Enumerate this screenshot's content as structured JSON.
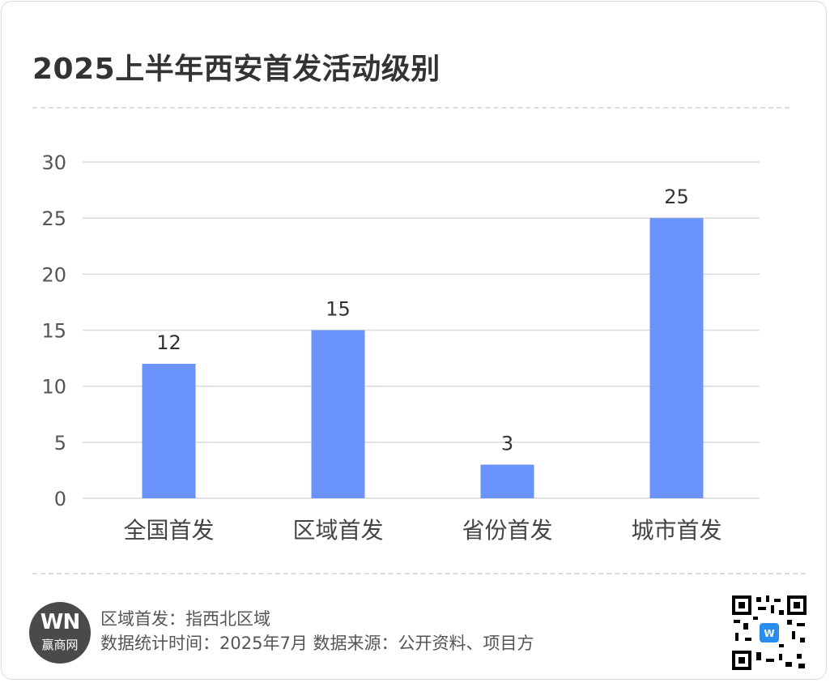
{
  "title": "2025上半年西安首发活动级别",
  "chart_data": {
    "type": "bar",
    "categories": [
      "全国首发",
      "区域首发",
      "省份首发",
      "城市首发"
    ],
    "values": [
      12,
      15,
      3,
      25
    ],
    "data_labels": [
      "12",
      "15",
      "3",
      "25"
    ],
    "y_ticks": [
      "0",
      "5",
      "10",
      "15",
      "20",
      "25",
      "30"
    ],
    "ylim": [
      0,
      30
    ],
    "grid": true,
    "bar_color": "#6b93fc",
    "grid_color": "#d9d9d9"
  },
  "footer": {
    "logo_mark": "WN",
    "logo_text": "赢商网",
    "note_1": "区域首发：指西北区域",
    "note_2": "数据统计时间：2025年7月 数据来源：公开资料、项目方"
  },
  "icons": {
    "qr": "qr-code-icon"
  }
}
